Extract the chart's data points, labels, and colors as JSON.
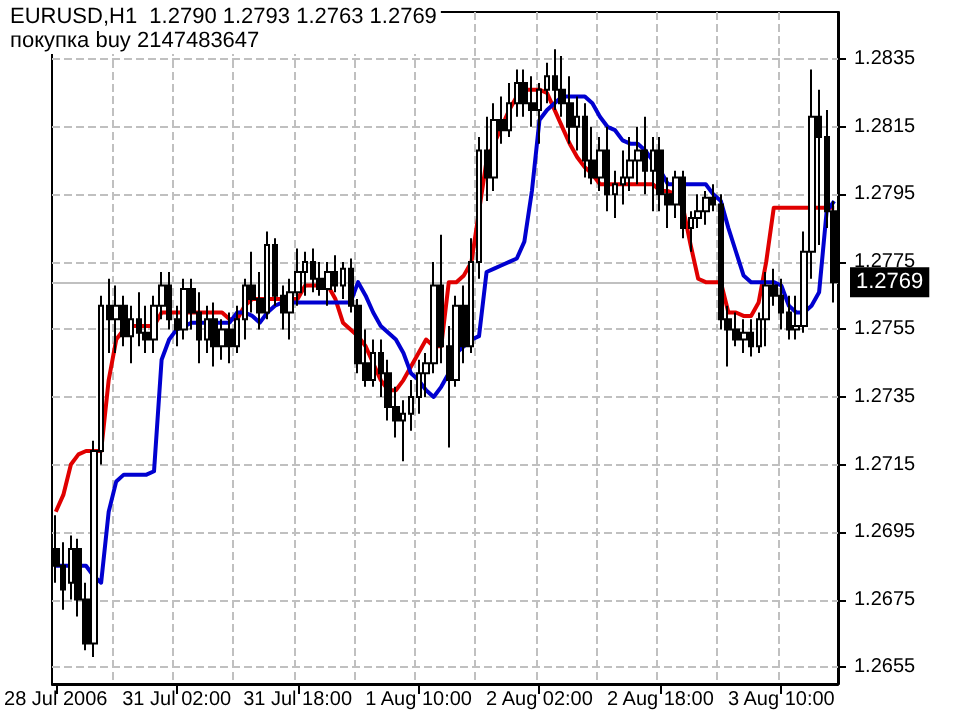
{
  "chart_data": {
    "type": "candlestick",
    "title": "EURUSD,H1  1.2790 1.2793 1.2763 1.2769",
    "subtitle": "покупка buy 2147483647",
    "color": "#000000",
    "categories": [
      "28 Jul 2006",
      null,
      null,
      null,
      null,
      null,
      null,
      null,
      null,
      null,
      null,
      null,
      null,
      null,
      null,
      null,
      "31 Jul 02:00",
      null,
      null,
      null,
      null,
      null,
      null,
      null,
      null,
      null,
      null,
      null,
      null,
      null,
      null,
      null,
      "31 Jul 18:00",
      null,
      null,
      null,
      null,
      null,
      null,
      null,
      null,
      null,
      null,
      null,
      null,
      null,
      null,
      null,
      "1 Aug 10:00",
      null,
      null,
      null,
      null,
      null,
      null,
      null,
      null,
      null,
      null,
      null,
      null,
      null,
      null,
      null,
      "2 Aug 02:00",
      null,
      null,
      null,
      null,
      null,
      null,
      null,
      null,
      null,
      null,
      null,
      null,
      null,
      null,
      null,
      "2 Aug 18:00",
      null,
      null,
      null,
      null,
      null,
      null,
      null,
      null,
      null,
      null,
      null,
      null,
      null,
      null,
      null,
      "3 Aug 10:00",
      null,
      null,
      null,
      null,
      null,
      null,
      null
    ],
    "ohlc": [
      [
        1.269,
        1.27,
        1.268,
        1.2685
      ],
      [
        1.2685,
        1.2692,
        1.2672,
        1.2678
      ],
      [
        1.268,
        1.2694,
        1.2675,
        1.269
      ],
      [
        1.269,
        1.2693,
        1.267,
        1.2675
      ],
      [
        1.2675,
        1.268,
        1.266,
        1.2662
      ],
      [
        1.2662,
        1.2722,
        1.2658,
        1.2719
      ],
      [
        1.2719,
        1.2765,
        1.2715,
        1.2762
      ],
      [
        1.2762,
        1.277,
        1.2748,
        1.2758
      ],
      [
        1.2758,
        1.2768,
        1.2748,
        1.2762
      ],
      [
        1.2762,
        1.2765,
        1.275,
        1.2753
      ],
      [
        1.2753,
        1.2762,
        1.2745,
        1.2758
      ],
      [
        1.2758,
        1.2766,
        1.275,
        1.2754
      ],
      [
        1.2754,
        1.2762,
        1.2748,
        1.2752
      ],
      [
        1.2752,
        1.2765,
        1.2748,
        1.2762
      ],
      [
        1.2762,
        1.2772,
        1.2758,
        1.2768
      ],
      [
        1.2768,
        1.2772,
        1.2755,
        1.2758
      ],
      [
        1.2758,
        1.2762,
        1.275,
        1.2755
      ],
      [
        1.2755,
        1.277,
        1.2752,
        1.2767
      ],
      [
        1.2767,
        1.277,
        1.2755,
        1.276
      ],
      [
        1.276,
        1.2766,
        1.2745,
        1.2752
      ],
      [
        1.2752,
        1.2762,
        1.2748,
        1.2758
      ],
      [
        1.2758,
        1.2763,
        1.2744,
        1.275
      ],
      [
        1.275,
        1.2758,
        1.2746,
        1.2755
      ],
      [
        1.2755,
        1.276,
        1.2745,
        1.275
      ],
      [
        1.275,
        1.2762,
        1.2748,
        1.2758
      ],
      [
        1.2758,
        1.277,
        1.2752,
        1.2768
      ],
      [
        1.2768,
        1.2778,
        1.276,
        1.2764
      ],
      [
        1.2764,
        1.2772,
        1.2755,
        1.276
      ],
      [
        1.276,
        1.2784,
        1.2758,
        1.278
      ],
      [
        1.278,
        1.2782,
        1.2762,
        1.2765
      ],
      [
        1.2765,
        1.2768,
        1.2755,
        1.276
      ],
      [
        1.276,
        1.277,
        1.2752,
        1.2766
      ],
      [
        1.2766,
        1.2779,
        1.2762,
        1.2772
      ],
      [
        1.2772,
        1.2778,
        1.2765,
        1.2775
      ],
      [
        1.2775,
        1.2779,
        1.2766,
        1.277
      ],
      [
        1.277,
        1.2775,
        1.2765,
        1.2767
      ],
      [
        1.2767,
        1.2775,
        1.2762,
        1.2772
      ],
      [
        1.2772,
        1.2777,
        1.2766,
        1.2768
      ],
      [
        1.2768,
        1.2775,
        1.2764,
        1.2773
      ],
      [
        1.2773,
        1.2776,
        1.276,
        1.2762
      ],
      [
        1.2762,
        1.2764,
        1.2742,
        1.2745
      ],
      [
        1.2745,
        1.2755,
        1.2738,
        1.274
      ],
      [
        1.274,
        1.2752,
        1.2738,
        1.2748
      ],
      [
        1.2748,
        1.2752,
        1.2735,
        1.2742
      ],
      [
        1.2742,
        1.2746,
        1.2728,
        1.2732
      ],
      [
        1.2732,
        1.2738,
        1.2723,
        1.2728
      ],
      [
        1.2728,
        1.2734,
        1.2716,
        1.273
      ],
      [
        1.273,
        1.274,
        1.2725,
        1.2735
      ],
      [
        1.2735,
        1.2746,
        1.273,
        1.2742
      ],
      [
        1.2742,
        1.2748,
        1.2735,
        1.2745
      ],
      [
        1.2745,
        1.2775,
        1.2742,
        1.2768
      ],
      [
        1.2768,
        1.2783,
        1.2745,
        1.275
      ],
      [
        1.275,
        1.2756,
        1.272,
        1.274
      ],
      [
        1.274,
        1.2765,
        1.2738,
        1.2762
      ],
      [
        1.2762,
        1.2768,
        1.2745,
        1.275
      ],
      [
        1.275,
        1.2782,
        1.2748,
        1.2775
      ],
      [
        1.2775,
        1.2812,
        1.277,
        1.2808
      ],
      [
        1.2808,
        1.2818,
        1.2793,
        1.28
      ],
      [
        1.28,
        1.2822,
        1.2796,
        1.2817
      ],
      [
        1.2817,
        1.2824,
        1.281,
        1.2814
      ],
      [
        1.2814,
        1.2828,
        1.2812,
        1.2822
      ],
      [
        1.2822,
        1.2832,
        1.2818,
        1.2828
      ],
      [
        1.2828,
        1.2832,
        1.2818,
        1.2822
      ],
      [
        1.2822,
        1.283,
        1.2815,
        1.282
      ],
      [
        1.282,
        1.2828,
        1.281,
        1.2826
      ],
      [
        1.2826,
        1.2834,
        1.2822,
        1.283
      ],
      [
        1.283,
        1.2838,
        1.282,
        1.2826
      ],
      [
        1.2826,
        1.2836,
        1.2818,
        1.2822
      ],
      [
        1.2822,
        1.283,
        1.281,
        1.2815
      ],
      [
        1.2815,
        1.2824,
        1.2808,
        1.2818
      ],
      [
        1.2818,
        1.2822,
        1.28,
        1.2805
      ],
      [
        1.2805,
        1.2815,
        1.2798,
        1.28
      ],
      [
        1.28,
        1.2812,
        1.2796,
        1.2808
      ],
      [
        1.2808,
        1.2815,
        1.279,
        1.2795
      ],
      [
        1.2795,
        1.2802,
        1.2788,
        1.2798
      ],
      [
        1.2798,
        1.2808,
        1.2792,
        1.28
      ],
      [
        1.28,
        1.2812,
        1.2796,
        1.2805
      ],
      [
        1.2805,
        1.2815,
        1.2798,
        1.2808
      ],
      [
        1.2808,
        1.2818,
        1.2795,
        1.2802
      ],
      [
        1.2802,
        1.2812,
        1.279,
        1.2808
      ],
      [
        1.2808,
        1.2812,
        1.279,
        1.2795
      ],
      [
        1.2795,
        1.28,
        1.2785,
        1.2792
      ],
      [
        1.2792,
        1.2802,
        1.2788,
        1.28
      ],
      [
        1.28,
        1.2802,
        1.2782,
        1.2785
      ],
      [
        1.2785,
        1.279,
        1.2778,
        1.2788
      ],
      [
        1.2788,
        1.2795,
        1.2785,
        1.279
      ],
      [
        1.279,
        1.2796,
        1.2786,
        1.2794
      ],
      [
        1.2794,
        1.2798,
        1.279,
        1.2792
      ],
      [
        1.2792,
        1.2795,
        1.2755,
        1.2758
      ],
      [
        1.2758,
        1.2762,
        1.2744,
        1.2755
      ],
      [
        1.2755,
        1.276,
        1.275,
        1.2752
      ],
      [
        1.2752,
        1.2758,
        1.2748,
        1.2754
      ],
      [
        1.2754,
        1.2758,
        1.2747,
        1.275
      ],
      [
        1.275,
        1.276,
        1.2748,
        1.2758
      ],
      [
        1.2758,
        1.2772,
        1.275,
        1.2768
      ],
      [
        1.2768,
        1.2773,
        1.2762,
        1.2765
      ],
      [
        1.2765,
        1.277,
        1.2755,
        1.276
      ],
      [
        1.276,
        1.2765,
        1.2752,
        1.2755
      ],
      [
        1.2755,
        1.2765,
        1.2752,
        1.2756
      ],
      [
        1.2756,
        1.2784,
        1.2754,
        1.2778
      ],
      [
        1.2778,
        1.2832,
        1.277,
        1.2818
      ],
      [
        1.2818,
        1.2826,
        1.278,
        1.2812
      ],
      [
        1.2812,
        1.282,
        1.2785,
        1.279
      ],
      [
        1.279,
        1.2793,
        1.2763,
        1.2769
      ]
    ],
    "series": [
      {
        "type": "line",
        "color": "#e00000",
        "values": [
          1.2701,
          1.2706,
          1.2715,
          1.2718,
          1.2719,
          1.2719,
          1.2719,
          1.274,
          1.2752,
          1.2755,
          1.2756,
          1.2756,
          1.2756,
          1.2756,
          1.276,
          1.276,
          1.276,
          1.276,
          1.276,
          1.276,
          1.276,
          1.276,
          1.276,
          1.2758,
          1.2758,
          1.2762,
          1.2764,
          1.2764,
          1.2764,
          1.2764,
          1.2764,
          1.2764,
          1.2764,
          1.2768,
          1.2768,
          1.2768,
          1.2768,
          1.2764,
          1.2757,
          1.2755,
          1.2753,
          1.275,
          1.2745,
          1.274,
          1.2737,
          1.2737,
          1.274,
          1.2744,
          1.2748,
          1.2752,
          1.275,
          1.275,
          1.2769,
          1.2769,
          1.2771,
          1.2775,
          null,
          1.2805,
          1.281,
          1.2815,
          1.282,
          1.2824,
          1.2826,
          1.2826,
          1.2826,
          1.2825,
          1.282,
          1.2815,
          1.281,
          1.2806,
          1.2803,
          1.2801,
          1.2798,
          1.2798,
          1.2798,
          1.2798,
          1.2798,
          1.2798,
          1.2798,
          1.2798,
          1.2796,
          1.2796,
          1.2795,
          1.2791,
          1.278,
          1.277,
          1.2769,
          1.2769,
          1.2769,
          1.276,
          1.276,
          1.2759,
          1.2759,
          1.2763,
          1.2775,
          1.2791,
          1.2791,
          1.2791,
          1.2791,
          1.2791,
          1.2791,
          1.2791,
          1.2791,
          1.2791
        ]
      },
      {
        "type": "line",
        "color": "#0000d0",
        "values": [
          1.2685,
          1.2685,
          1.2685,
          1.2685,
          1.2685,
          1.2682,
          1.268,
          1.2701,
          1.271,
          1.2712,
          1.2712,
          1.2712,
          1.2712,
          1.2713,
          1.2746,
          1.2752,
          1.2755,
          1.2756,
          1.2757,
          1.2757,
          1.2757,
          1.2757,
          1.2757,
          1.2757,
          1.276,
          1.276,
          1.2759,
          1.2757,
          1.276,
          1.2762,
          1.2763,
          1.2763,
          1.2763,
          1.2763,
          1.2763,
          1.2763,
          1.2763,
          1.2763,
          1.2763,
          1.2763,
          1.2769,
          1.2765,
          1.276,
          1.2756,
          1.2754,
          1.2752,
          1.2748,
          1.2742,
          1.274,
          1.2737,
          1.2735,
          1.2738,
          1.2742,
          1.2748,
          null,
          1.2752,
          1.2753,
          1.2772,
          1.2773,
          1.2774,
          1.2775,
          1.2776,
          1.2781,
          1.2796,
          1.2817,
          1.282,
          1.2822,
          1.2824,
          1.2824,
          1.2824,
          1.2824,
          1.2822,
          1.2818,
          1.2815,
          1.2814,
          1.2811,
          1.281,
          1.281,
          1.2808,
          1.2805,
          1.2802,
          1.2798,
          1.2798,
          1.2798,
          1.2798,
          1.2798,
          1.2798,
          1.2795,
          1.2793,
          1.2785,
          1.2778,
          1.2771,
          1.2769,
          1.2769,
          1.2769,
          1.2769,
          1.2768,
          1.2762,
          1.276,
          1.276,
          1.2762,
          1.2766,
          1.279,
          1.2793
        ]
      }
    ],
    "ylim": [
      1.265,
      1.2849
    ],
    "yticks": [
      1.2655,
      1.2675,
      1.2695,
      1.2715,
      1.2735,
      1.2755,
      1.2775,
      1.2795,
      1.2815,
      1.2835
    ],
    "ref_lines": [
      {
        "axis": "y",
        "value": 1.2769,
        "label": "1.2769",
        "color": "#c0c0c0"
      }
    ],
    "grid": true,
    "marker": "none"
  }
}
